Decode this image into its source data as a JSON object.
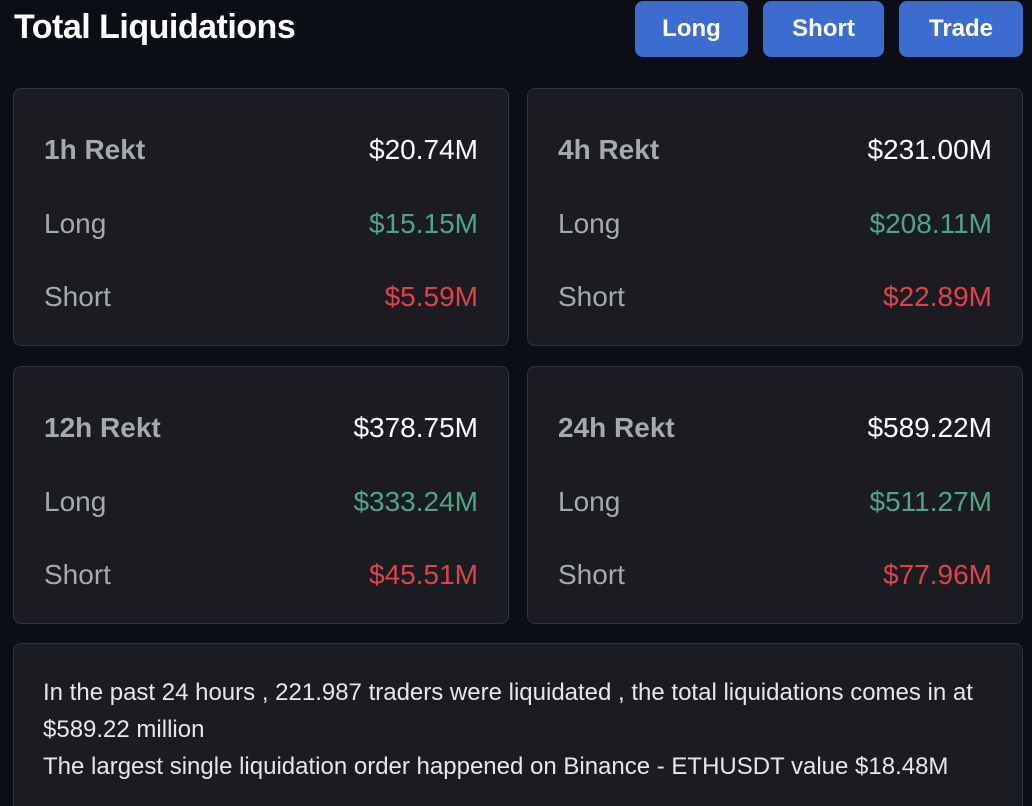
{
  "header": {
    "title": "Total Liquidations",
    "buttons": {
      "long": "Long",
      "short": "Short",
      "trade": "Trade"
    }
  },
  "colors": {
    "background": "#0b0e14",
    "card": "#1a1c22",
    "button": "#3d6ccf",
    "long": "#4fa584",
    "short": "#e0424d"
  },
  "cards": [
    {
      "title": "1h Rekt",
      "total": "$20.74M",
      "long_label": "Long",
      "long": "$15.15M",
      "short_label": "Short",
      "short": "$5.59M"
    },
    {
      "title": "4h Rekt",
      "total": "$231.00M",
      "long_label": "Long",
      "long": "$208.11M",
      "short_label": "Short",
      "short": "$22.89M"
    },
    {
      "title": "12h Rekt",
      "total": "$378.75M",
      "long_label": "Long",
      "long": "$333.24M",
      "short_label": "Short",
      "short": "$45.51M"
    },
    {
      "title": "24h Rekt",
      "total": "$589.22M",
      "long_label": "Long",
      "long": "$511.27M",
      "short_label": "Short",
      "short": "$77.96M"
    }
  ],
  "summary": {
    "line1": "In the past 24 hours , 221.987 traders were liquidated , the total liquidations comes in at $589.22 million",
    "line2": "The largest single liquidation order happened on Binance - ETHUSDT value $18.48M"
  }
}
